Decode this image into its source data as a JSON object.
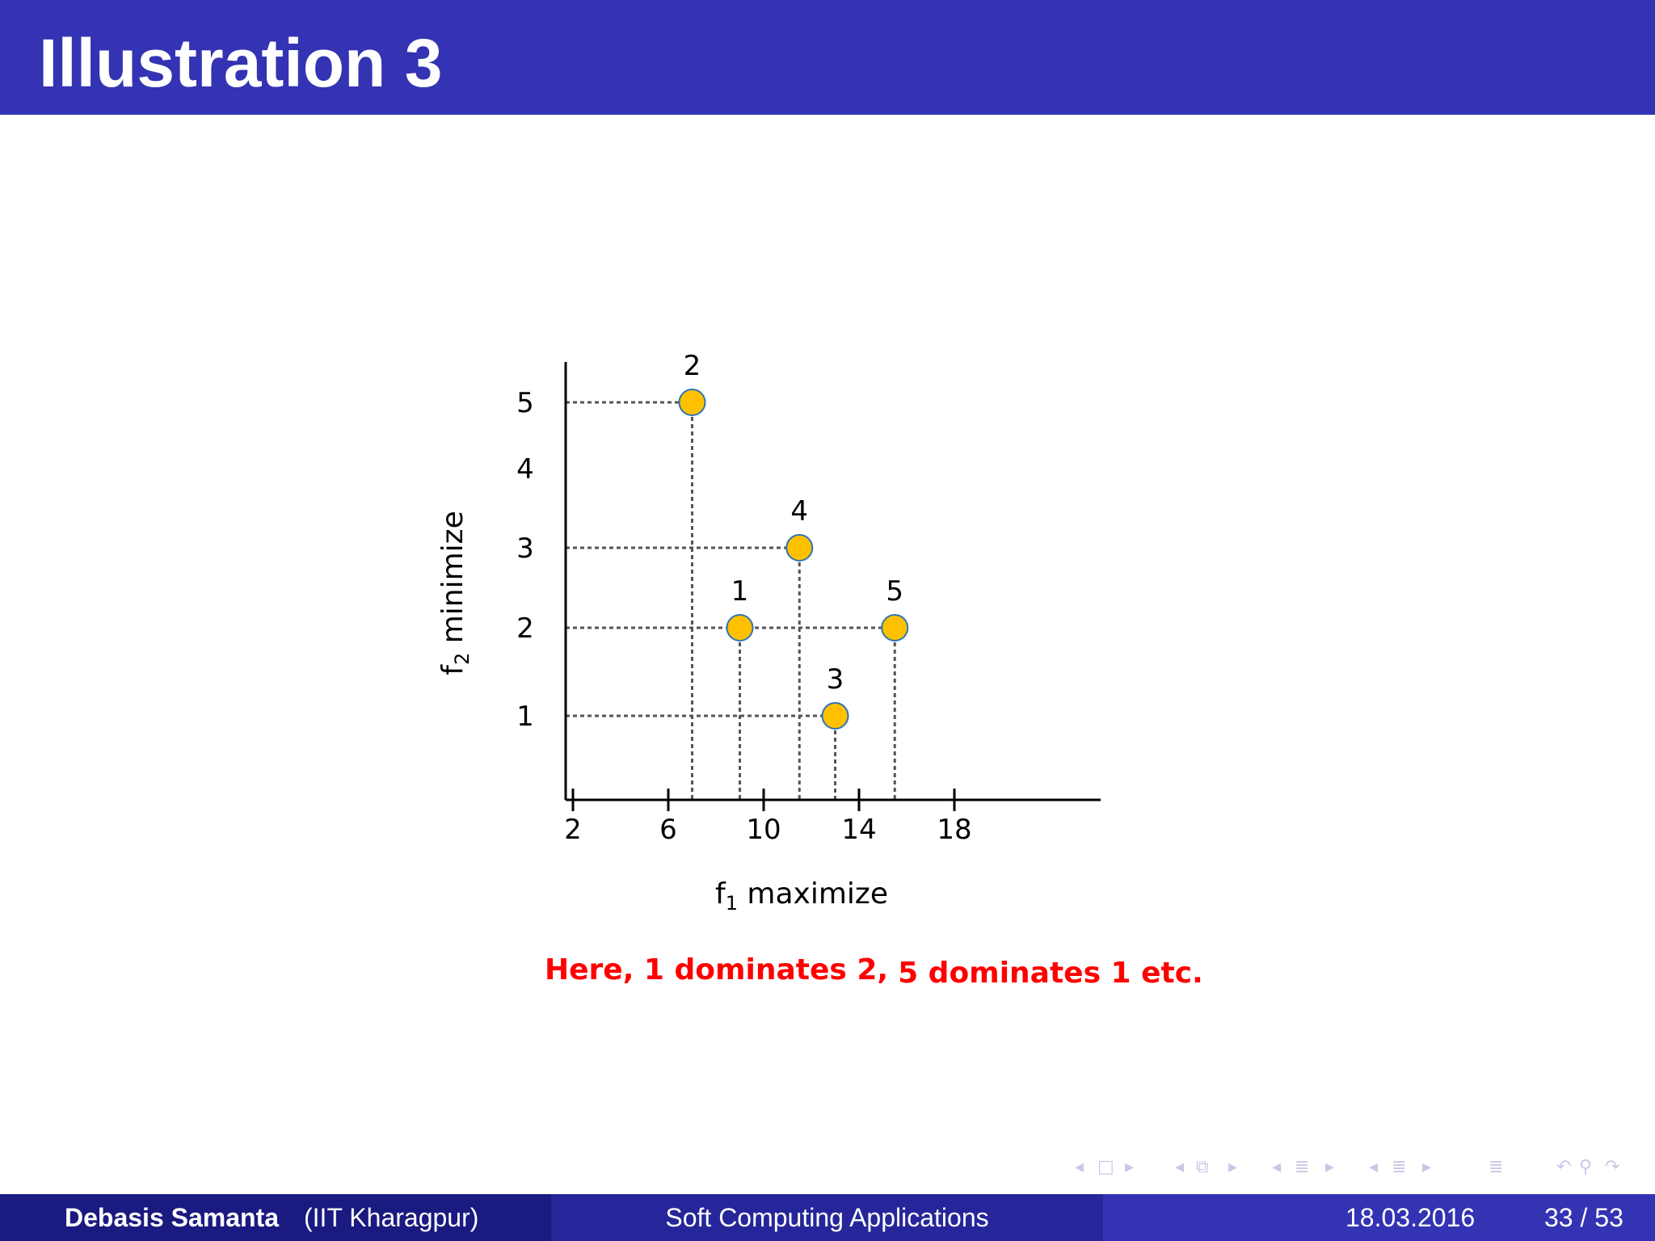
{
  "slide": {
    "title": "Illustration 3",
    "caption_part1": "Here, 1 dominates 2,",
    "caption_part2": "5 dominates 1  etc."
  },
  "footer": {
    "author": "Debasis Samanta",
    "institution": "(IIT Kharagpur)",
    "course": "Soft Computing Applications",
    "date": "18.03.2016",
    "page": "33 / 53"
  },
  "colors": {
    "title_bar": "#3333b3",
    "point_fill": "#ffc000",
    "point_stroke": "#2e75b6",
    "caption": "#ff0000"
  },
  "chart_data": {
    "type": "scatter",
    "xlabel": "f",
    "xlabel_sub": "1",
    "xlabel_suffix": " maximize",
    "ylabel": "f",
    "ylabel_sub": "2",
    "ylabel_suffix": " minimize",
    "x_ticks": [
      2,
      6,
      10,
      14,
      18
    ],
    "y_ticks": [
      1,
      2,
      3,
      4,
      5
    ],
    "grid": false,
    "points": [
      {
        "label": "1",
        "x": 9,
        "y": 2
      },
      {
        "label": "2",
        "x": 7,
        "y": 5
      },
      {
        "label": "3",
        "x": 13,
        "y": 1
      },
      {
        "label": "4",
        "x": 11.5,
        "y": 3
      },
      {
        "label": "5",
        "x": 15.5,
        "y": 2
      }
    ]
  }
}
